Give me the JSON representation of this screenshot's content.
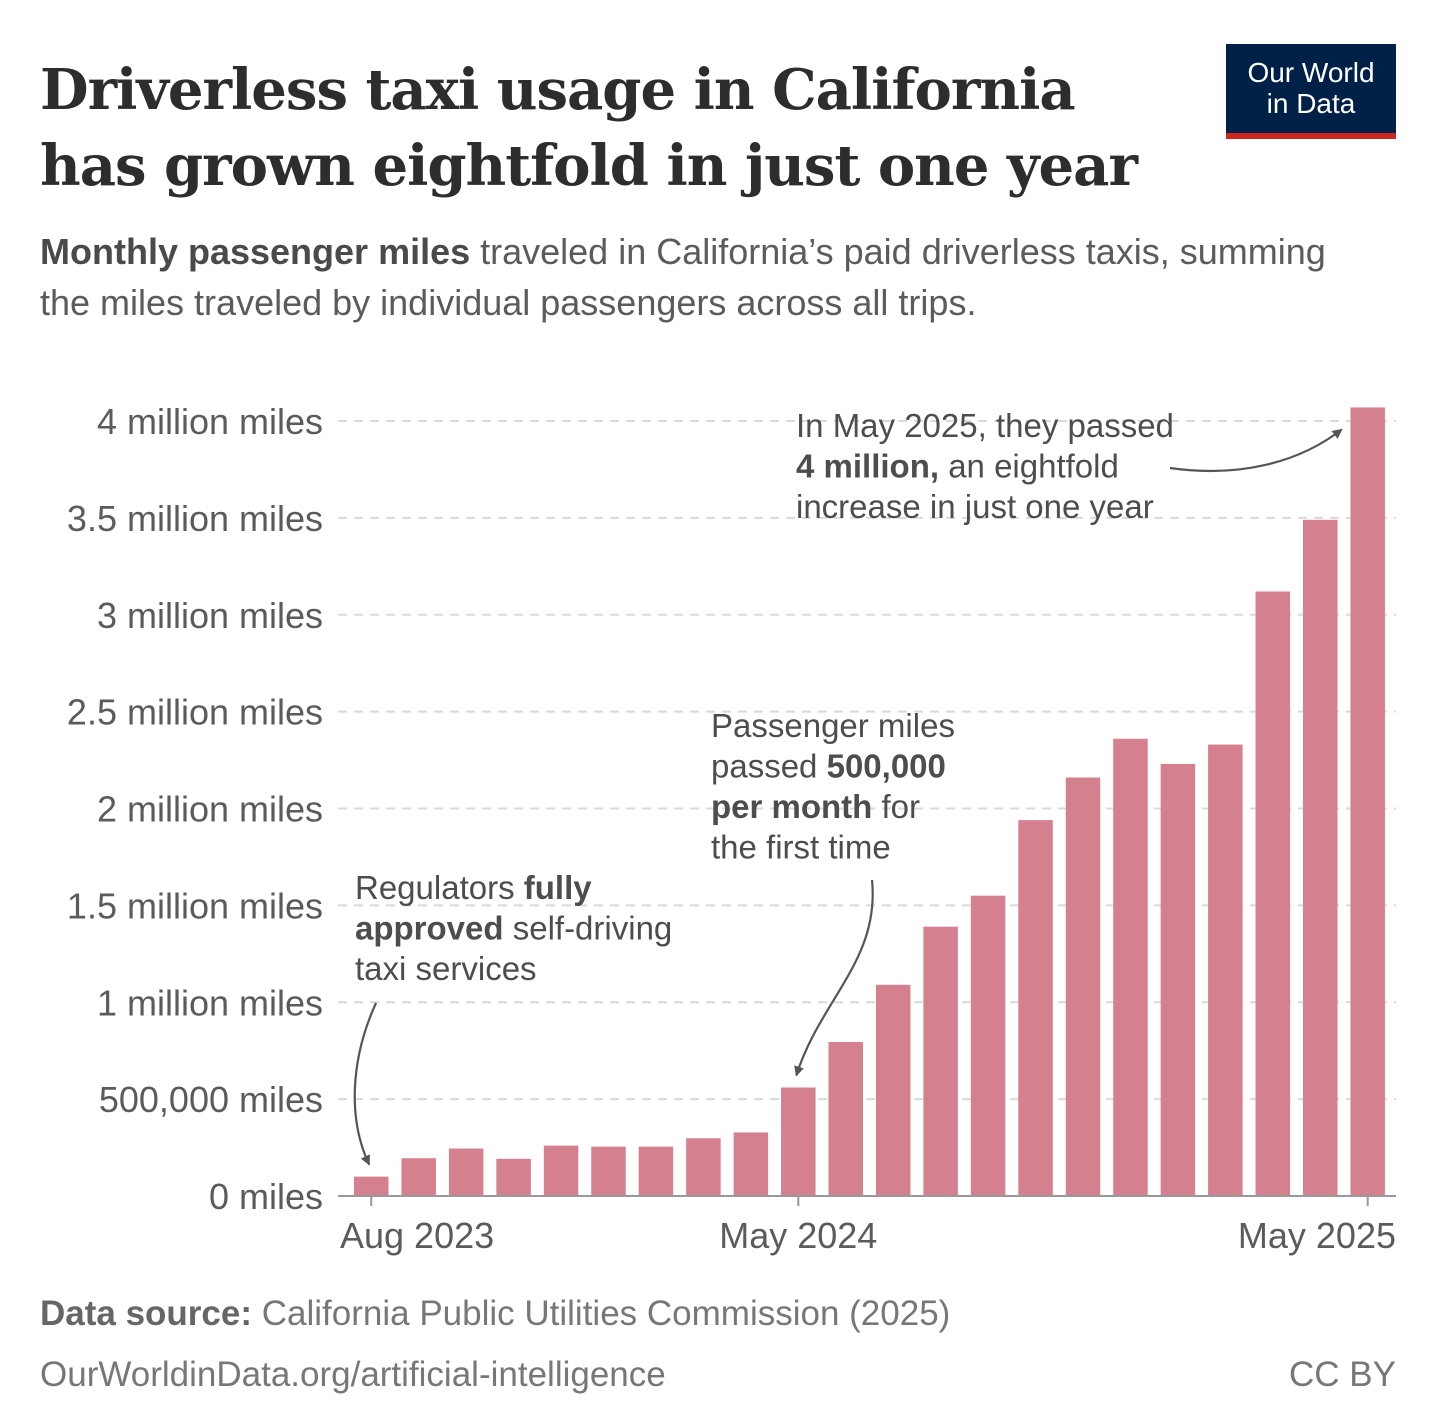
{
  "title": "Driverless taxi usage in California has grown eightfold in just one year",
  "subtitle": {
    "bold": "Monthly passenger miles",
    "rest": " traveled in California’s paid driverless taxis, summing the miles traveled by individual passengers across all trips."
  },
  "logo": {
    "line1": "Our World",
    "line2": "in Data",
    "bg": "#002147",
    "accent": "#ce261e"
  },
  "footer": {
    "source_label": "Data source:",
    "source_text": " California Public Utilities Commission (2025)",
    "url": "OurWorldinData.org/artificial-intelligence",
    "license": "CC BY"
  },
  "colors": {
    "bar": "#d5808f",
    "grid": "#d9d9d9",
    "axis": "#999999",
    "arrow": "#555555"
  },
  "chart_data": {
    "type": "bar",
    "categories": [
      "Aug 2023",
      "Sep 2023",
      "Oct 2023",
      "Nov 2023",
      "Dec 2023",
      "Jan 2024",
      "Feb 2024",
      "Mar 2024",
      "Apr 2024",
      "May 2024",
      "Jun 2024",
      "Jul 2024",
      "Aug 2024",
      "Sep 2024",
      "Oct 2024",
      "Nov 2024",
      "Dec 2024",
      "Jan 2025",
      "Feb 2025",
      "Mar 2025",
      "Apr 2025",
      "May 2025"
    ],
    "values": [
      100000,
      195000,
      245000,
      192000,
      260000,
      255000,
      255000,
      298000,
      328000,
      560000,
      795000,
      1090000,
      1390000,
      1550000,
      1940000,
      2160000,
      2360000,
      2230000,
      2330000,
      3120000,
      3490000,
      4070000
    ],
    "ylim": [
      0,
      4000000
    ],
    "yticks": [
      {
        "value": 0,
        "label": "0 miles"
      },
      {
        "value": 500000,
        "label": "500,000 miles"
      },
      {
        "value": 1000000,
        "label": "1 million miles"
      },
      {
        "value": 1500000,
        "label": "1.5 million miles"
      },
      {
        "value": 2000000,
        "label": "2 million miles"
      },
      {
        "value": 2500000,
        "label": "2.5 million miles"
      },
      {
        "value": 3000000,
        "label": "3 million miles"
      },
      {
        "value": 3500000,
        "label": "3.5 million miles"
      },
      {
        "value": 4000000,
        "label": "4 million miles"
      }
    ],
    "xticks": [
      {
        "category": "Aug 2023",
        "label": "Aug 2023"
      },
      {
        "category": "May 2024",
        "label": "May 2024"
      },
      {
        "category": "May 2025",
        "label": "May 2025"
      }
    ],
    "grid": "horizontal dashed",
    "annotations": [
      {
        "target": "Aug 2023",
        "lines": [
          [
            {
              "t": "Regulators ",
              "b": false
            },
            {
              "t": "fully",
              "b": true
            }
          ],
          [
            {
              "t": "approved",
              "b": true
            },
            {
              "t": " self-driving",
              "b": false
            }
          ],
          [
            {
              "t": "taxi services",
              "b": false
            }
          ]
        ]
      },
      {
        "target": "May 2024",
        "lines": [
          [
            {
              "t": "Passenger miles",
              "b": false
            }
          ],
          [
            {
              "t": "passed ",
              "b": false
            },
            {
              "t": "500,000",
              "b": true
            }
          ],
          [
            {
              "t": "per month",
              "b": true
            },
            {
              "t": " for",
              "b": false
            }
          ],
          [
            {
              "t": "the first time",
              "b": false
            }
          ]
        ]
      },
      {
        "target": "May 2025",
        "lines": [
          [
            {
              "t": "In May 2025, they passed",
              "b": false
            }
          ],
          [
            {
              "t": "4 million,",
              "b": true
            },
            {
              "t": " an eightfold",
              "b": false
            }
          ],
          [
            {
              "t": "increase in just one year",
              "b": false
            }
          ]
        ]
      }
    ]
  }
}
